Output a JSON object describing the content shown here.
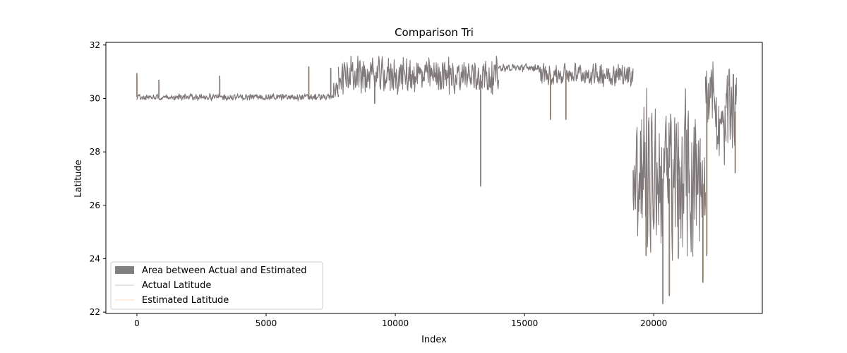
{
  "chart_data": {
    "type": "area",
    "title": "Comparison Tri",
    "xlabel": "Index",
    "ylabel": "Latitude",
    "xlim": [
      -1200,
      24200
    ],
    "ylim": [
      21.95,
      32.1
    ],
    "xticks": [
      0,
      5000,
      10000,
      15000,
      20000
    ],
    "yticks": [
      22,
      24,
      26,
      28,
      30,
      32
    ],
    "grid": false,
    "legend_position": "bottom-left",
    "legend": [
      {
        "label": "Area between Actual and Estimated",
        "kind": "patch",
        "color": "#808080"
      },
      {
        "label": "Actual Latitude",
        "kind": "line",
        "color": "#dcdcdc"
      },
      {
        "label": "Estimated Latitude",
        "kind": "line",
        "color": "#ffe6d0"
      }
    ],
    "colors": {
      "area": "#7e7678",
      "actual": "#8c8c8c",
      "estimated": "#b7a27a"
    },
    "segments": [
      {
        "x": [
          0,
          7600
        ],
        "center": 30.05,
        "amp": 0.1
      },
      {
        "x": [
          7600,
          7800
        ],
        "center": 30.3,
        "amp": 0.3
      },
      {
        "x": [
          7800,
          14000
        ],
        "center": 30.85,
        "amp": 0.55
      },
      {
        "x": [
          14000,
          15500
        ],
        "center": 31.15,
        "amp": 0.12
      },
      {
        "x": [
          15500,
          19200
        ],
        "center": 30.9,
        "amp": 0.35
      },
      {
        "x": [
          19200,
          21800
        ],
        "center": 27.0,
        "amp": 2.6
      },
      {
        "x": [
          21800,
          22000
        ],
        "center": 26.8,
        "amp": 1.2
      },
      {
        "x": [
          22000,
          22400
        ],
        "center": 30.2,
        "amp": 1.1
      },
      {
        "x": [
          22400,
          22800
        ],
        "center": 28.7,
        "amp": 1.2
      },
      {
        "x": [
          22800,
          23200
        ],
        "center": 29.5,
        "amp": 1.6
      }
    ],
    "spikes": [
      {
        "x": 0,
        "y": 30.95
      },
      {
        "x": 850,
        "y": 30.7
      },
      {
        "x": 3200,
        "y": 30.85
      },
      {
        "x": 6650,
        "y": 31.2
      },
      {
        "x": 7500,
        "y": 31.15
      },
      {
        "x": 9200,
        "y": 29.8
      },
      {
        "x": 13300,
        "y": 26.7
      },
      {
        "x": 16000,
        "y": 29.2
      },
      {
        "x": 16600,
        "y": 29.2
      },
      {
        "x": 19700,
        "y": 24.1
      },
      {
        "x": 20350,
        "y": 22.3
      },
      {
        "x": 20600,
        "y": 22.6
      },
      {
        "x": 20950,
        "y": 24.0
      },
      {
        "x": 21900,
        "y": 23.1
      },
      {
        "x": 22050,
        "y": 24.1
      },
      {
        "x": 23150,
        "y": 27.2
      }
    ]
  }
}
